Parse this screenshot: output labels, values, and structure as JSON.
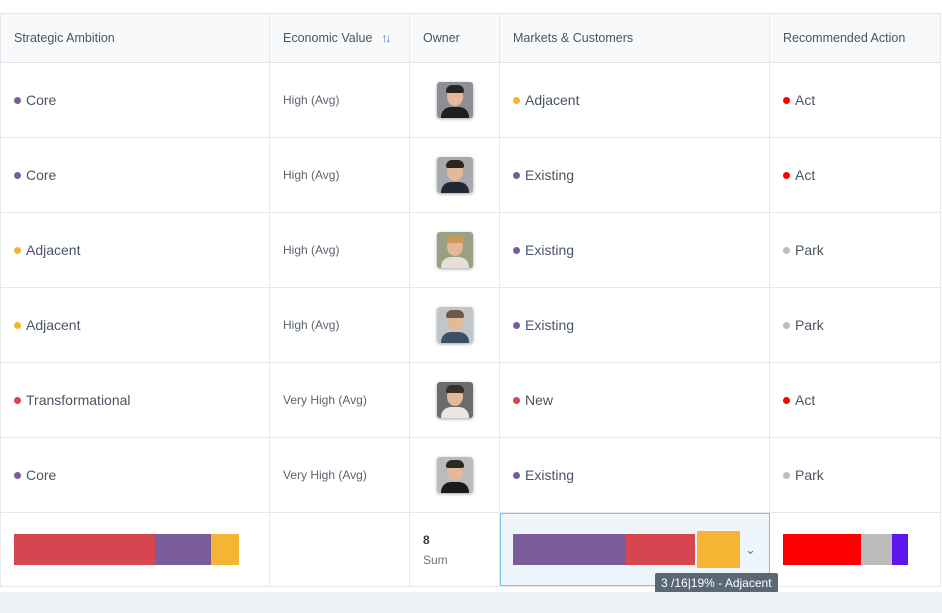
{
  "headers": {
    "strategic": "Strategic Ambition",
    "economic": "Economic Value",
    "owner": "Owner",
    "markets": "Markets & Customers",
    "action": "Recommended Action"
  },
  "colors": {
    "core": "#7a5c9a",
    "adjacent": "#f5b532",
    "transformational": "#d64550",
    "act": "#ff0000",
    "park": "#bdbdbd",
    "accent": "#2a8cc7"
  },
  "rows": [
    {
      "strategic": "Core",
      "strategic_color": "#7a5c9a",
      "economic": "High (Avg)",
      "owner": "person-avatar-1",
      "markets": "Adjacent",
      "markets_color": "#f5b532",
      "action": "Act",
      "action_color": "#ff0000"
    },
    {
      "strategic": "Core",
      "strategic_color": "#7a5c9a",
      "economic": "High (Avg)",
      "owner": "person-avatar-2",
      "markets": "Existing",
      "markets_color": "#7a5c9a",
      "action": "Act",
      "action_color": "#ff0000"
    },
    {
      "strategic": "Adjacent",
      "strategic_color": "#f5b532",
      "economic": "High (Avg)",
      "owner": "person-avatar-3",
      "markets": "Existing",
      "markets_color": "#7a5c9a",
      "action": "Park",
      "action_color": "#bdbdbd"
    },
    {
      "strategic": "Adjacent",
      "strategic_color": "#f5b532",
      "economic": "High (Avg)",
      "owner": "person-avatar-4",
      "markets": "Existing",
      "markets_color": "#7a5c9a",
      "action": "Park",
      "action_color": "#bdbdbd"
    },
    {
      "strategic": "Transformational",
      "strategic_color": "#d64550",
      "economic": "Very High (Avg)",
      "owner": "person-avatar-5",
      "markets": "New",
      "markets_color": "#d64550",
      "action": "Act",
      "action_color": "#ff0000"
    },
    {
      "strategic": "Core",
      "strategic_color": "#7a5c9a",
      "economic": "Very High (Avg)",
      "owner": "person-avatar-6",
      "markets": "Existing",
      "markets_color": "#7a5c9a",
      "action": "Park",
      "action_color": "#bdbdbd"
    }
  ],
  "summary": {
    "owner_sum_value": "8",
    "owner_sum_label": "Sum",
    "strategic_bar": [
      {
        "color": "#d64550",
        "share": 0.625
      },
      {
        "color": "#7a5c9a",
        "share": 0.25
      },
      {
        "color": "#f5b532",
        "share": 0.125
      }
    ],
    "markets_bar": [
      {
        "color": "#7a5c9a",
        "share": 0.5
      },
      {
        "color": "#d64550",
        "share": 0.31
      },
      {
        "color": "#f5b532",
        "share": 0.19
      }
    ],
    "action_bar": [
      {
        "color": "#ff0000",
        "share": 0.625
      },
      {
        "color": "#bdbdbd",
        "share": 0.25
      },
      {
        "color": "#5a18ee",
        "share": 0.125
      }
    ],
    "tooltip": "3 /16|19% - Adjacent"
  },
  "avatars": {
    "person-avatar-1": {
      "hair": "#2b2520",
      "shirt": "#1e1e1e",
      "bg": "#8c8f94"
    },
    "person-avatar-2": {
      "hair": "#2a2620",
      "shirt": "#1f2836",
      "bg": "#a7a9ad"
    },
    "person-avatar-3": {
      "hair": "#c99a5a",
      "shirt": "#e8e0d6",
      "bg": "#9aa084"
    },
    "person-avatar-4": {
      "hair": "#6a5a48",
      "shirt": "#3d4f66",
      "bg": "#c2c6c9"
    },
    "person-avatar-5": {
      "hair": "#3a3028",
      "shirt": "#e9e6e3",
      "bg": "#6a6c6e"
    },
    "person-avatar-6": {
      "hair": "#2e2822",
      "shirt": "#1a1a1a",
      "bg": "#b9bcbf"
    }
  }
}
